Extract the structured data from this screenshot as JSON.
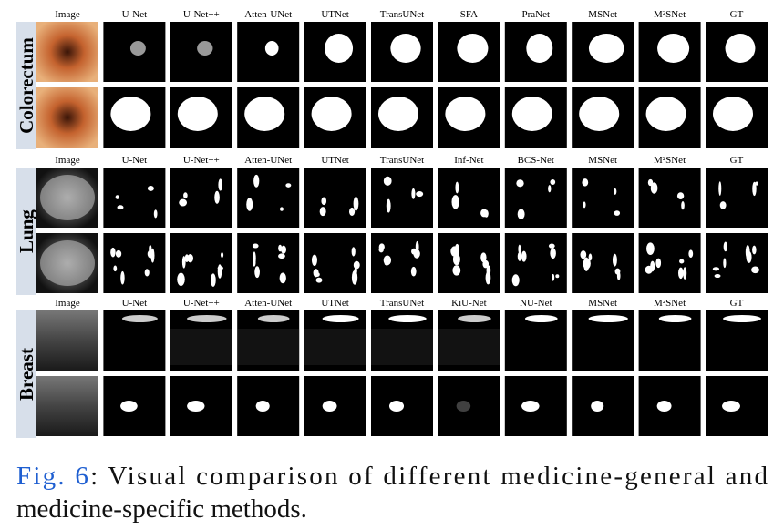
{
  "sections": [
    {
      "label": "Colorectum",
      "headers": [
        "Image",
        "U-Net",
        "U-Net++",
        "Atten-UNet",
        "UTNet",
        "TransUNet",
        "SFA",
        "PraNet",
        "MSNet",
        "M²SNet",
        "GT"
      ]
    },
    {
      "label": "Lung",
      "headers": [
        "Image",
        "U-Net",
        "U-Net++",
        "Atten-UNet",
        "UTNet",
        "TransUNet",
        "Inf-Net",
        "BCS-Net",
        "MSNet",
        "M²SNet",
        "GT"
      ]
    },
    {
      "label": "Breast",
      "headers": [
        "Image",
        "U-Net",
        "U-Net++",
        "Atten-UNet",
        "UTNet",
        "TransUNet",
        "KiU-Net",
        "NU-Net",
        "MSNet",
        "M²SNet",
        "GT"
      ]
    }
  ],
  "caption": {
    "figure": "Fig. 6",
    "line1": ": Visual comparison of different medicine-general and",
    "line2": "medicine-specific methods."
  }
}
